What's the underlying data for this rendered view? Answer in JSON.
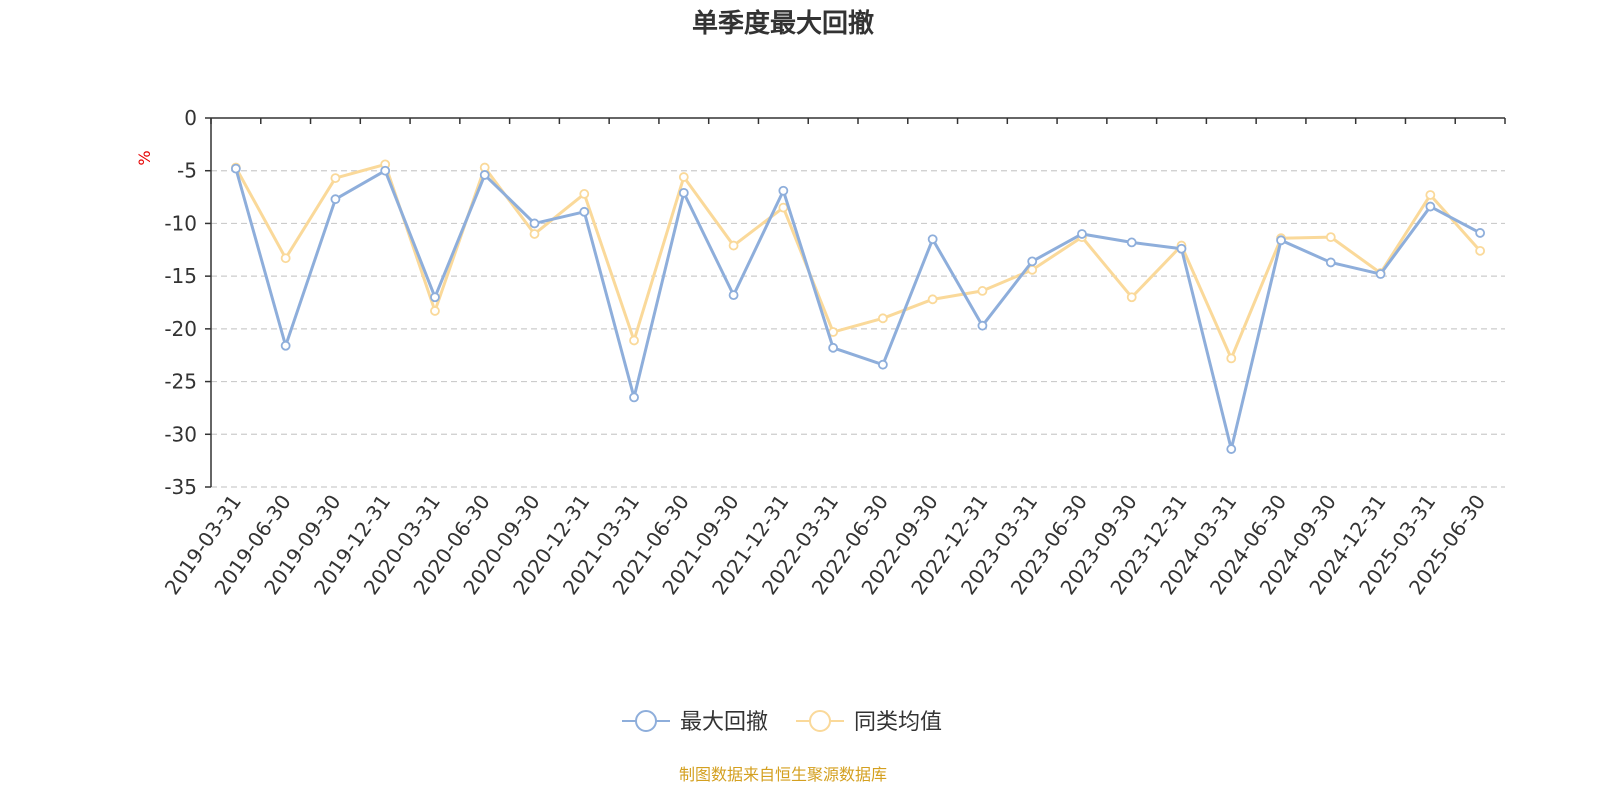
{
  "chart_data": {
    "type": "line",
    "title": "单季度最大回撤",
    "ylabel": "%",
    "ylim": [
      -35,
      0
    ],
    "yticks": [
      0,
      -5,
      -10,
      -15,
      -20,
      -25,
      -30,
      -35
    ],
    "ytick_labels": [
      "0",
      "-5",
      "-10",
      "-15",
      "-20",
      "-25",
      "-30",
      "-35"
    ],
    "grid": true,
    "legend_position": "bottom-center",
    "categories": [
      "2019-03-31",
      "2019-06-30",
      "2019-09-30",
      "2019-12-31",
      "2020-03-31",
      "2020-06-30",
      "2020-09-30",
      "2020-12-31",
      "2021-03-31",
      "2021-06-30",
      "2021-09-30",
      "2021-12-31",
      "2022-03-31",
      "2022-06-30",
      "2022-09-30",
      "2022-12-31",
      "2023-03-31",
      "2023-06-30",
      "2023-09-30",
      "2023-12-31",
      "2024-03-31",
      "2024-06-30",
      "2024-09-30",
      "2024-12-31",
      "2025-03-31",
      "2025-06-30"
    ],
    "series": [
      {
        "name": "最大回撤",
        "color": "#8eaedb",
        "values": [
          -4.8,
          -21.6,
          -7.7,
          -5.0,
          -17.0,
          -5.4,
          -10.0,
          -8.9,
          -26.5,
          -7.1,
          -16.8,
          -6.9,
          -21.8,
          -23.4,
          -11.5,
          -19.7,
          -13.6,
          -11.0,
          -11.8,
          -12.4,
          -31.4,
          -11.6,
          -13.7,
          -14.8,
          -8.4,
          -10.9
        ]
      },
      {
        "name": "同类均值",
        "color": "#fad99a",
        "values": [
          -4.7,
          -13.3,
          -5.7,
          -4.4,
          -18.3,
          -4.7,
          -11.0,
          -7.2,
          -21.1,
          -5.6,
          -12.1,
          -8.5,
          -20.3,
          -19.0,
          -17.2,
          -16.4,
          -14.4,
          -11.3,
          -17.0,
          -12.1,
          -22.8,
          -11.4,
          -11.3,
          -14.7,
          -7.3,
          -12.6
        ]
      }
    ]
  },
  "source_note": "制图数据来自恒生聚源数据库"
}
